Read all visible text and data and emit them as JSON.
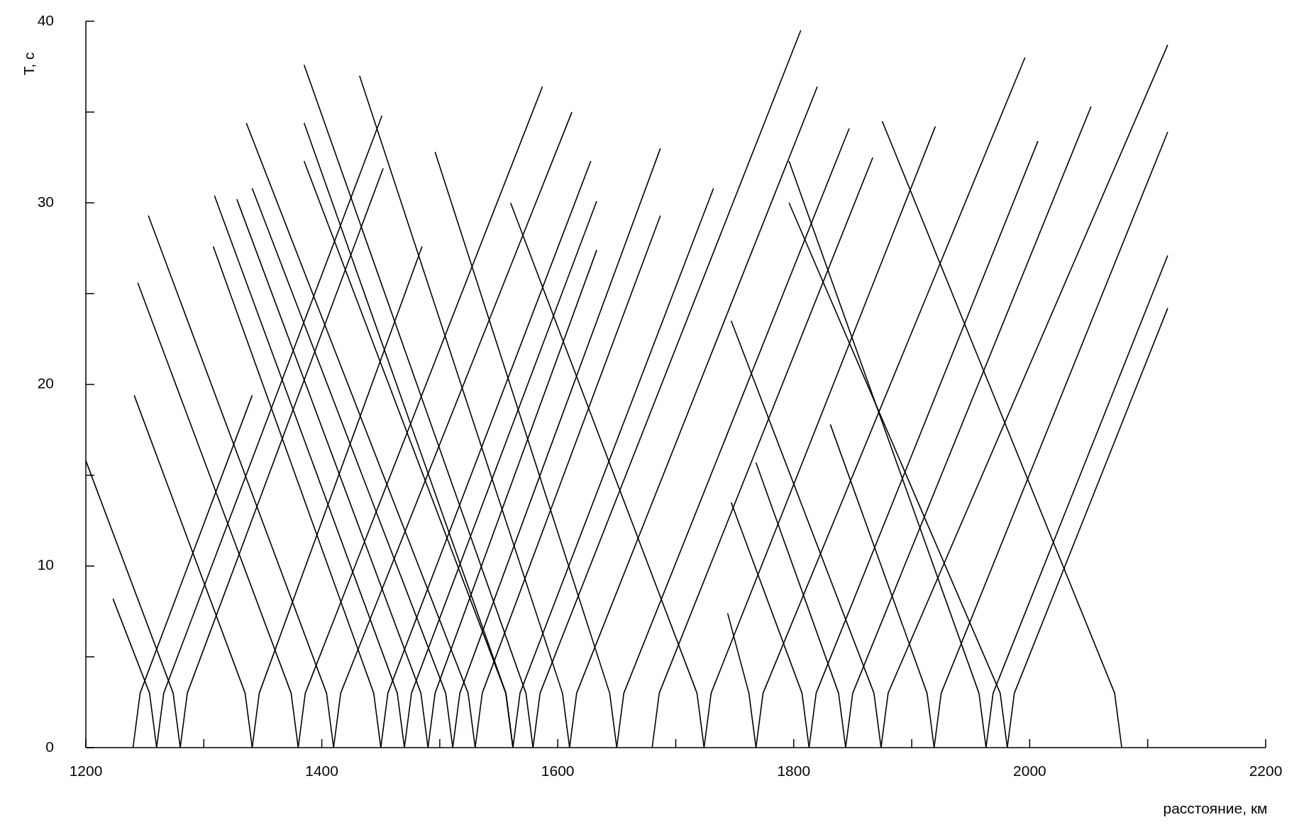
{
  "chart_data": {
    "type": "line",
    "xlabel": "расстояние, км",
    "ylabel": "T, c",
    "color": "#000000",
    "grid": false,
    "xlim": [
      1200,
      2200
    ],
    "ylim": [
      0,
      40
    ],
    "xticks": [
      1200,
      {
        "value": 1300,
        "label": null
      },
      1400,
      {
        "value": 1500,
        "label": null
      },
      1600,
      {
        "value": 1700,
        "label": null
      },
      1800,
      {
        "value": 1900,
        "label": null
      },
      2000,
      {
        "value": 2100,
        "label": null
      },
      2200
    ],
    "yticks": [
      0,
      {
        "value": 5,
        "label": null
      },
      10,
      {
        "value": 15,
        "label": null
      },
      20,
      {
        "value": 25,
        "label": null
      },
      30,
      {
        "value": 35,
        "label": null
      },
      40
    ],
    "series": [
      {
        "x": [
          1280,
          1274,
          1200
        ],
        "values": [
          0,
          3,
          15.8
        ]
      },
      {
        "x": [
          1260,
          1254,
          1223
        ],
        "values": [
          0,
          3,
          8.2
        ]
      },
      {
        "x": [
          1341,
          1335,
          1241
        ],
        "values": [
          0,
          3,
          19.4
        ]
      },
      {
        "x": [
          1380,
          1374,
          1244
        ],
        "values": [
          0,
          3,
          25.6
        ]
      },
      {
        "x": [
          1410,
          1404,
          1253
        ],
        "values": [
          0,
          3,
          29.3
        ]
      },
      {
        "x": [
          1450,
          1444,
          1308
        ],
        "values": [
          0,
          3,
          27.6
        ]
      },
      {
        "x": [
          1470,
          1464,
          1309
        ],
        "values": [
          0,
          3,
          30.4
        ]
      },
      {
        "x": [
          1490,
          1484,
          1328
        ],
        "values": [
          0,
          3,
          30.2
        ]
      },
      {
        "x": [
          1511,
          1505,
          1341
        ],
        "values": [
          0,
          3,
          30.8
        ]
      },
      {
        "x": [
          1530,
          1524,
          1336
        ],
        "values": [
          0,
          3,
          34.4
        ]
      },
      {
        "x": [
          1562,
          1556,
          1385
        ],
        "values": [
          0,
          3,
          34.4
        ]
      },
      {
        "x": [
          1579,
          1573,
          1385
        ],
        "values": [
          0,
          3,
          37.6
        ]
      },
      {
        "x": [
          1562,
          1556,
          1385
        ],
        "values": [
          0,
          3,
          32.3
        ]
      },
      {
        "x": [
          1610,
          1604,
          1432
        ],
        "values": [
          0,
          3,
          37
        ]
      },
      {
        "x": [
          1650,
          1644,
          1496
        ],
        "values": [
          0,
          3,
          32.8
        ]
      },
      {
        "x": [
          1724,
          1718,
          1560
        ],
        "values": [
          0,
          3,
          30
        ]
      },
      {
        "x": [
          2078,
          2072,
          1875
        ],
        "values": [
          0,
          3,
          34.5
        ]
      },
      {
        "x": [
          1963,
          1957,
          1796
        ],
        "values": [
          0,
          3,
          32.3
        ]
      },
      {
        "x": [
          1981,
          1975,
          1796
        ],
        "values": [
          0,
          3,
          30
        ]
      },
      {
        "x": [
          1874,
          1868,
          1747
        ],
        "values": [
          0,
          3,
          23.5
        ]
      },
      {
        "x": [
          1844,
          1838,
          1768
        ],
        "values": [
          0,
          3,
          15.7
        ]
      },
      {
        "x": [
          1813,
          1807,
          1747
        ],
        "values": [
          0,
          3,
          13.5
        ]
      },
      {
        "x": [
          1919,
          1913,
          1831
        ],
        "values": [
          0,
          3,
          17.8
        ]
      },
      {
        "x": [
          1768,
          1762,
          1744
        ],
        "values": [
          0,
          3,
          7.4
        ]
      },
      {
        "x": [
          1240,
          1246,
          1341
        ],
        "values": [
          0,
          3,
          19.4
        ]
      },
      {
        "x": [
          1260,
          1266,
          1451
        ],
        "values": [
          0,
          3,
          34.8
        ]
      },
      {
        "x": [
          1280,
          1286,
          1452
        ],
        "values": [
          0,
          3,
          31.9
        ]
      },
      {
        "x": [
          1341,
          1347,
          1485
        ],
        "values": [
          0,
          3,
          27.6
        ]
      },
      {
        "x": [
          1380,
          1386,
          1587
        ],
        "values": [
          0,
          3,
          36.4
        ]
      },
      {
        "x": [
          1410,
          1416,
          1612
        ],
        "values": [
          0,
          3,
          35
        ]
      },
      {
        "x": [
          1450,
          1456,
          1628
        ],
        "values": [
          0,
          3,
          32.3
        ]
      },
      {
        "x": [
          1470,
          1476,
          1633
        ],
        "values": [
          0,
          3,
          30.1
        ]
      },
      {
        "x": [
          1490,
          1496,
          1633
        ],
        "values": [
          0,
          3,
          27.4
        ]
      },
      {
        "x": [
          1511,
          1517,
          1687
        ],
        "values": [
          0,
          3,
          33
        ]
      },
      {
        "x": [
          1530,
          1536,
          1687
        ],
        "values": [
          0,
          3,
          29.3
        ]
      },
      {
        "x": [
          1562,
          1568,
          1732
        ],
        "values": [
          0,
          3,
          30.8
        ]
      },
      {
        "x": [
          1579,
          1585,
          1806
        ],
        "values": [
          0,
          3,
          39.5
        ]
      },
      {
        "x": [
          1610,
          1616,
          1820
        ],
        "values": [
          0,
          3,
          36.4
        ]
      },
      {
        "x": [
          1650,
          1656,
          1847
        ],
        "values": [
          0,
          3,
          34.1
        ]
      },
      {
        "x": [
          1680,
          1686,
          1867
        ],
        "values": [
          0,
          3,
          32.5
        ]
      },
      {
        "x": [
          1724,
          1730,
          1920
        ],
        "values": [
          0,
          3,
          34.2
        ]
      },
      {
        "x": [
          1768,
          1774,
          1996
        ],
        "values": [
          0,
          3,
          38
        ]
      },
      {
        "x": [
          1813,
          1819,
          2007
        ],
        "values": [
          0,
          3,
          33.4
        ]
      },
      {
        "x": [
          1844,
          1850,
          2052
        ],
        "values": [
          0,
          3,
          35.3
        ]
      },
      {
        "x": [
          1874,
          1880,
          2117
        ],
        "values": [
          0,
          3,
          38.7
        ]
      },
      {
        "x": [
          1919,
          1925,
          2117
        ],
        "values": [
          0,
          3,
          33.9
        ]
      },
      {
        "x": [
          1963,
          1969,
          2117
        ],
        "values": [
          0,
          3,
          27.1
        ]
      },
      {
        "x": [
          1981,
          1987,
          2117
        ],
        "values": [
          0,
          3,
          24.2
        ]
      }
    ]
  }
}
